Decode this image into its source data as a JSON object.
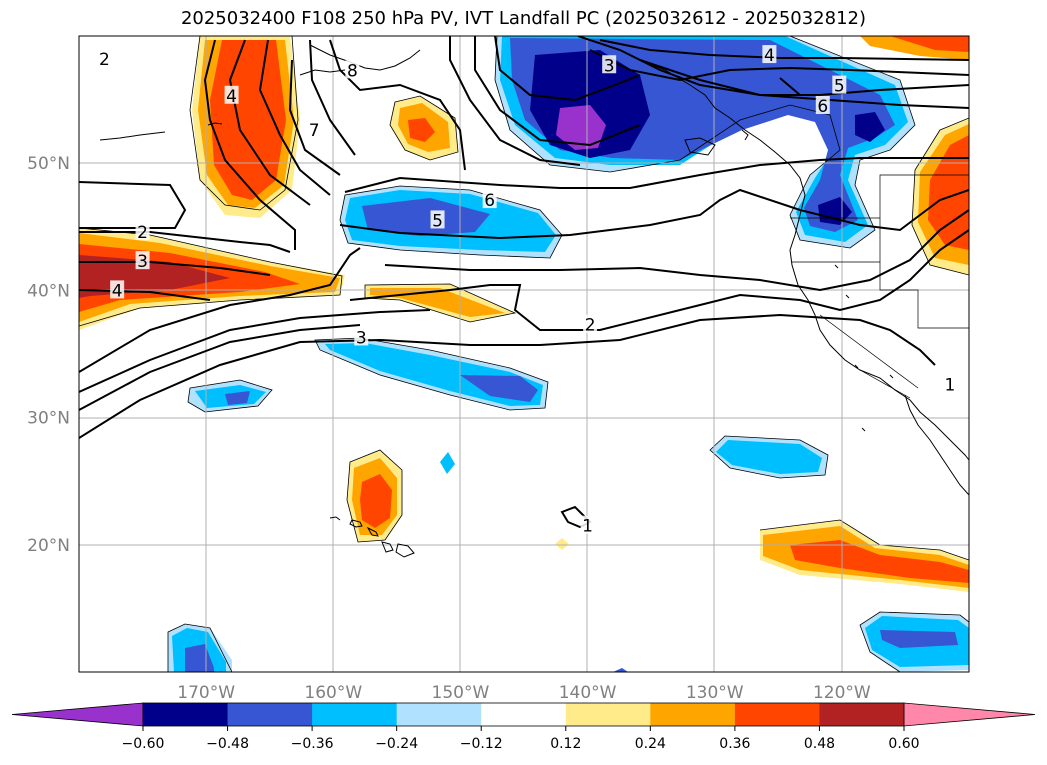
{
  "title": "2025032400 F108 250 hPa PV, IVT Landfall PC (2025032612 - 2025032812)",
  "map": {
    "extent": {
      "lon_min": -180,
      "lon_max": -110,
      "lat_min": 10,
      "lat_max": 60
    },
    "gridlines": true,
    "lon_ticks": [
      {
        "value": -170,
        "label": "170°W"
      },
      {
        "value": -160,
        "label": "160°W"
      },
      {
        "value": -150,
        "label": "150°W"
      },
      {
        "value": -140,
        "label": "140°W"
      },
      {
        "value": -130,
        "label": "130°W"
      },
      {
        "value": -120,
        "label": "120°W"
      }
    ],
    "lat_ticks": [
      {
        "value": 50,
        "label": "50°N"
      },
      {
        "value": 40,
        "label": "40°N"
      },
      {
        "value": 30,
        "label": "30°N"
      },
      {
        "value": 20,
        "label": "20°N"
      }
    ],
    "contour_labels": [
      {
        "text": "2",
        "lon": -178,
        "lat": 58.2
      },
      {
        "text": "2",
        "lon": -175,
        "lat": 44.6
      },
      {
        "text": "3",
        "lon": -175,
        "lat": 42.3
      },
      {
        "text": "4",
        "lon": -177,
        "lat": 40
      },
      {
        "text": "4",
        "lon": -168,
        "lat": 55.3
      },
      {
        "text": "8",
        "lon": -158.5,
        "lat": 57.3
      },
      {
        "text": "7",
        "lon": -161.5,
        "lat": 52.6
      },
      {
        "text": "5",
        "lon": -151.8,
        "lat": 45.5
      },
      {
        "text": "6",
        "lon": -147.7,
        "lat": 47.1
      },
      {
        "text": "3",
        "lon": -157.8,
        "lat": 36.3
      },
      {
        "text": "3",
        "lon": -138.3,
        "lat": 57.7
      },
      {
        "text": "4",
        "lon": -125.7,
        "lat": 58.5
      },
      {
        "text": "5",
        "lon": -120.2,
        "lat": 56.1
      },
      {
        "text": "6",
        "lon": -121.5,
        "lat": 54.5
      },
      {
        "text": "2",
        "lon": -139.8,
        "lat": 37.3
      },
      {
        "text": "1",
        "lon": -111.5,
        "lat": 32.6
      },
      {
        "text": "1",
        "lon": -140,
        "lat": 21.5
      }
    ]
  },
  "colorbar": {
    "levels": [
      -0.6,
      -0.48,
      -0.36,
      -0.24,
      -0.12,
      0.12,
      0.24,
      0.36,
      0.48,
      0.6
    ],
    "tick_labels": [
      "−0.60",
      "−0.48",
      "−0.36",
      "−0.24",
      "−0.12",
      "0.12",
      "0.24",
      "0.36",
      "0.48",
      "0.60"
    ],
    "colors": [
      "#9932cc",
      "#00008b",
      "#3656d3",
      "#00bfff",
      "#b0e2ff",
      "#ffffff",
      "#ffeb8a",
      "#ffa500",
      "#ff4500",
      "#b22222",
      "#ff88aa"
    ],
    "extend": "both"
  }
}
